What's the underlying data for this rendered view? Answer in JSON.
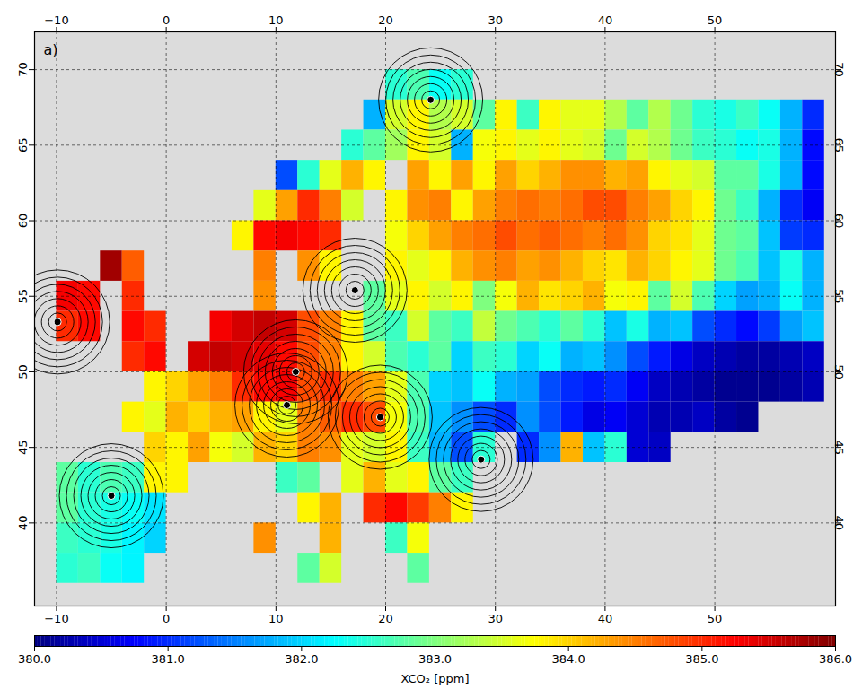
{
  "chart_data": {
    "type": "heatmap",
    "title": "a)",
    "xlim": [
      -12,
      61
    ],
    "ylim": [
      34.5,
      72.5
    ],
    "xticks": [
      -10,
      0,
      10,
      20,
      30,
      40,
      50
    ],
    "yticks": [
      40,
      45,
      50,
      55,
      60,
      65,
      70
    ],
    "grid": true,
    "cell_size": [
      2,
      2
    ],
    "x": [
      -9,
      -7,
      -5,
      -3,
      -1,
      1,
      3,
      5,
      7,
      9,
      11,
      13,
      15,
      17,
      19,
      21,
      23,
      25,
      27,
      29,
      31,
      33,
      35,
      37,
      39,
      41,
      43,
      45,
      47,
      49,
      51,
      53,
      55,
      57,
      59
    ],
    "y": [
      69,
      67,
      65,
      63,
      61,
      59,
      57,
      55,
      53,
      51,
      49,
      47,
      45,
      43,
      41,
      39,
      37
    ],
    "values": [
      [
        null,
        null,
        null,
        null,
        null,
        null,
        null,
        null,
        null,
        null,
        null,
        null,
        null,
        null,
        null,
        382.5,
        382.7,
        382.3,
        382.5,
        null,
        null,
        null,
        null,
        null,
        null,
        null,
        null,
        null,
        null,
        null,
        null,
        null,
        null,
        null,
        null
      ],
      [
        null,
        null,
        null,
        null,
        null,
        null,
        null,
        null,
        null,
        null,
        null,
        null,
        null,
        null,
        381.8,
        383.5,
        383.8,
        383.3,
        383.5,
        382.8,
        383.8,
        382.6,
        383.8,
        383.6,
        383.6,
        383.3,
        382.8,
        383.3,
        382.9,
        382.5,
        382.4,
        382.6,
        382.3,
        381.8,
        381.0
      ],
      [
        null,
        null,
        null,
        null,
        null,
        null,
        null,
        null,
        null,
        null,
        null,
        null,
        null,
        382.5,
        382.8,
        383.2,
        383.8,
        383.5,
        381.8,
        383.7,
        383.8,
        383.6,
        383.8,
        383.6,
        383.5,
        382.9,
        383.5,
        383.3,
        382.9,
        382.6,
        382.5,
        382.3,
        382.4,
        381.8,
        380.8
      ],
      [
        null,
        null,
        null,
        null,
        null,
        null,
        null,
        null,
        null,
        null,
        381.2,
        382.5,
        383.6,
        384.2,
        383.8,
        null,
        384.3,
        383.8,
        384.3,
        383.8,
        384.3,
        384.0,
        384.2,
        384.4,
        384.4,
        384.2,
        384.3,
        383.8,
        383.6,
        383.5,
        382.8,
        382.8,
        382.4,
        381.8,
        380.8
      ],
      [
        null,
        null,
        null,
        null,
        null,
        null,
        null,
        null,
        null,
        383.6,
        384.3,
        385.0,
        384.5,
        383.5,
        null,
        383.8,
        384.4,
        384.5,
        383.8,
        384.3,
        384.5,
        384.6,
        384.5,
        384.6,
        384.8,
        384.8,
        384.5,
        384.3,
        384.0,
        383.8,
        382.9,
        382.6,
        381.8,
        381.0,
        380.7
      ],
      [
        null,
        null,
        null,
        null,
        null,
        null,
        null,
        null,
        383.8,
        385.2,
        385.3,
        385.2,
        385.0,
        null,
        null,
        383.7,
        384.0,
        384.3,
        384.5,
        384.6,
        384.8,
        384.6,
        384.7,
        384.6,
        384.5,
        384.6,
        384.4,
        384.0,
        383.9,
        383.6,
        382.9,
        382.8,
        381.9,
        381.1,
        381.0
      ],
      [
        null,
        null,
        385.8,
        384.7,
        null,
        null,
        null,
        null,
        null,
        384.5,
        null,
        384.4,
        383.8,
        null,
        null,
        383.8,
        383.6,
        383.8,
        384.2,
        384.4,
        384.5,
        384.3,
        384.4,
        384.2,
        384.0,
        383.9,
        384.2,
        384.0,
        383.8,
        383.6,
        382.9,
        382.7,
        381.9,
        382.4,
        381.8
      ],
      [
        385.3,
        385.2,
        null,
        385.0,
        null,
        null,
        null,
        null,
        null,
        384.4,
        null,
        null,
        null,
        null,
        382.8,
        383.6,
        383.8,
        383.5,
        383.8,
        383.0,
        383.7,
        384.2,
        383.9,
        384.0,
        384.2,
        383.7,
        383.8,
        382.8,
        383.5,
        382.7,
        382.0,
        381.7,
        381.8,
        382.3,
        381.8
      ],
      [
        385.0,
        385.2,
        null,
        385.2,
        385.0,
        null,
        null,
        385.3,
        385.5,
        385.6,
        385.5,
        384.8,
        384.5,
        383.8,
        382.8,
        382.6,
        383.5,
        382.8,
        382.6,
        383.4,
        382.9,
        382.7,
        382.5,
        382.8,
        382.5,
        381.9,
        382.4,
        381.8,
        381.9,
        381.2,
        381.0,
        380.8,
        381.1,
        381.7,
        381.9
      ],
      [
        null,
        null,
        null,
        385.0,
        385.2,
        null,
        385.5,
        385.6,
        385.5,
        385.4,
        385.2,
        384.8,
        384.5,
        383.8,
        383.5,
        382.7,
        382.5,
        382.8,
        382.0,
        382.6,
        382.5,
        382.0,
        382.3,
        381.8,
        381.9,
        381.6,
        381.2,
        380.9,
        380.6,
        380.4,
        380.3,
        380.2,
        380.2,
        380.3,
        380.4
      ],
      [
        null,
        null,
        null,
        null,
        383.8,
        384.0,
        384.3,
        384.5,
        385.0,
        385.2,
        385.3,
        384.8,
        385.0,
        384.5,
        384.3,
        383.6,
        382.7,
        382.0,
        381.9,
        382.3,
        381.8,
        381.7,
        381.2,
        381.0,
        380.9,
        381.0,
        380.7,
        380.4,
        380.3,
        380.2,
        380.1,
        380.1,
        380.1,
        380.2,
        380.3
      ],
      [
        null,
        null,
        null,
        383.8,
        383.6,
        384.2,
        384.0,
        384.2,
        384.3,
        383.8,
        383.6,
        384.5,
        384.7,
        385.0,
        384.8,
        383.7,
        382.7,
        381.9,
        381.6,
        381.2,
        381.0,
        381.6,
        381.2,
        380.9,
        380.6,
        380.7,
        380.5,
        380.3,
        380.3,
        380.4,
        380.2,
        380.1,
        null,
        null,
        null
      ],
      [
        null,
        null,
        null,
        null,
        384.0,
        383.8,
        384.3,
        383.7,
        383.5,
        384.2,
        384.0,
        384.5,
        384.4,
        383.6,
        383.5,
        383.8,
        382.6,
        381.8,
        381.2,
        382.5,
        null,
        381.0,
        381.6,
        384.2,
        381.9,
        382.5,
        380.5,
        380.4,
        null,
        null,
        null,
        null,
        null,
        null,
        null
      ],
      [
        382.8,
        382.5,
        382.7,
        382.6,
        383.8,
        383.8,
        null,
        null,
        null,
        null,
        382.6,
        382.8,
        null,
        383.6,
        384.2,
        383.6,
        383.8,
        382.8,
        382.6,
        null,
        null,
        null,
        null,
        null,
        null,
        null,
        null,
        null,
        null,
        null,
        null,
        null,
        null,
        null,
        null
      ],
      [
        382.8,
        382.5,
        382.4,
        382.3,
        382.1,
        null,
        null,
        null,
        null,
        null,
        null,
        383.8,
        384.2,
        null,
        385.0,
        385.2,
        384.9,
        384.5,
        383.8,
        null,
        null,
        null,
        null,
        null,
        null,
        null,
        null,
        null,
        null,
        null,
        null,
        null,
        null,
        null,
        null
      ],
      [
        382.6,
        382.5,
        382.4,
        382.2,
        382.0,
        null,
        null,
        null,
        null,
        384.4,
        null,
        null,
        384.2,
        null,
        null,
        382.6,
        383.7,
        null,
        null,
        null,
        null,
        null,
        null,
        null,
        null,
        null,
        null,
        null,
        null,
        null,
        null,
        null,
        null,
        null,
        null
      ],
      [
        382.5,
        382.6,
        382.3,
        382.2,
        null,
        null,
        null,
        null,
        null,
        null,
        null,
        382.8,
        383.5,
        null,
        null,
        null,
        382.8,
        null,
        null,
        null,
        null,
        null,
        null,
        null,
        null,
        null,
        null,
        null,
        null,
        null,
        null,
        null,
        null,
        null,
        null
      ]
    ],
    "stations": {
      "x": [
        -9.9,
        -5.0,
        11.8,
        11.0,
        19.5,
        17.2,
        24.1,
        28.7
      ],
      "y": [
        53.3,
        41.8,
        50.0,
        47.8,
        47.0,
        55.4,
        68.0,
        44.2
      ]
    },
    "colorbar": {
      "label": "XCO₂ [ppm]",
      "range": [
        380,
        386
      ],
      "ticks": [
        380,
        381,
        382,
        383,
        384,
        385,
        386
      ]
    }
  }
}
